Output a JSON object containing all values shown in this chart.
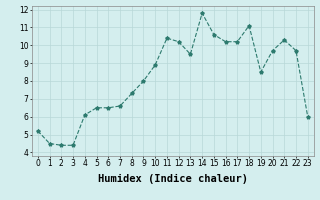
{
  "x": [
    0,
    1,
    2,
    3,
    4,
    5,
    6,
    7,
    8,
    9,
    10,
    11,
    12,
    13,
    14,
    15,
    16,
    17,
    18,
    19,
    20,
    21,
    22,
    23
  ],
  "y": [
    5.2,
    4.5,
    4.4,
    4.4,
    6.1,
    6.5,
    6.5,
    6.6,
    7.3,
    8.0,
    8.9,
    10.4,
    10.2,
    9.5,
    11.8,
    10.6,
    10.2,
    10.2,
    11.1,
    8.5,
    9.7,
    10.3,
    9.7,
    6.0
  ],
  "xlabel": "Humidex (Indice chaleur)",
  "xlim": [
    -0.5,
    23.5
  ],
  "ylim": [
    3.8,
    12.2
  ],
  "yticks": [
    4,
    5,
    6,
    7,
    8,
    9,
    10,
    11,
    12
  ],
  "xticks": [
    0,
    1,
    2,
    3,
    4,
    5,
    6,
    7,
    8,
    9,
    10,
    11,
    12,
    13,
    14,
    15,
    16,
    17,
    18,
    19,
    20,
    21,
    22,
    23
  ],
  "line_color": "#2d7a6e",
  "marker": "*",
  "bg_color": "#d4eeee",
  "grid_color": "#b8d8d8",
  "tick_label_fontsize": 5.5,
  "xlabel_fontsize": 7.5
}
